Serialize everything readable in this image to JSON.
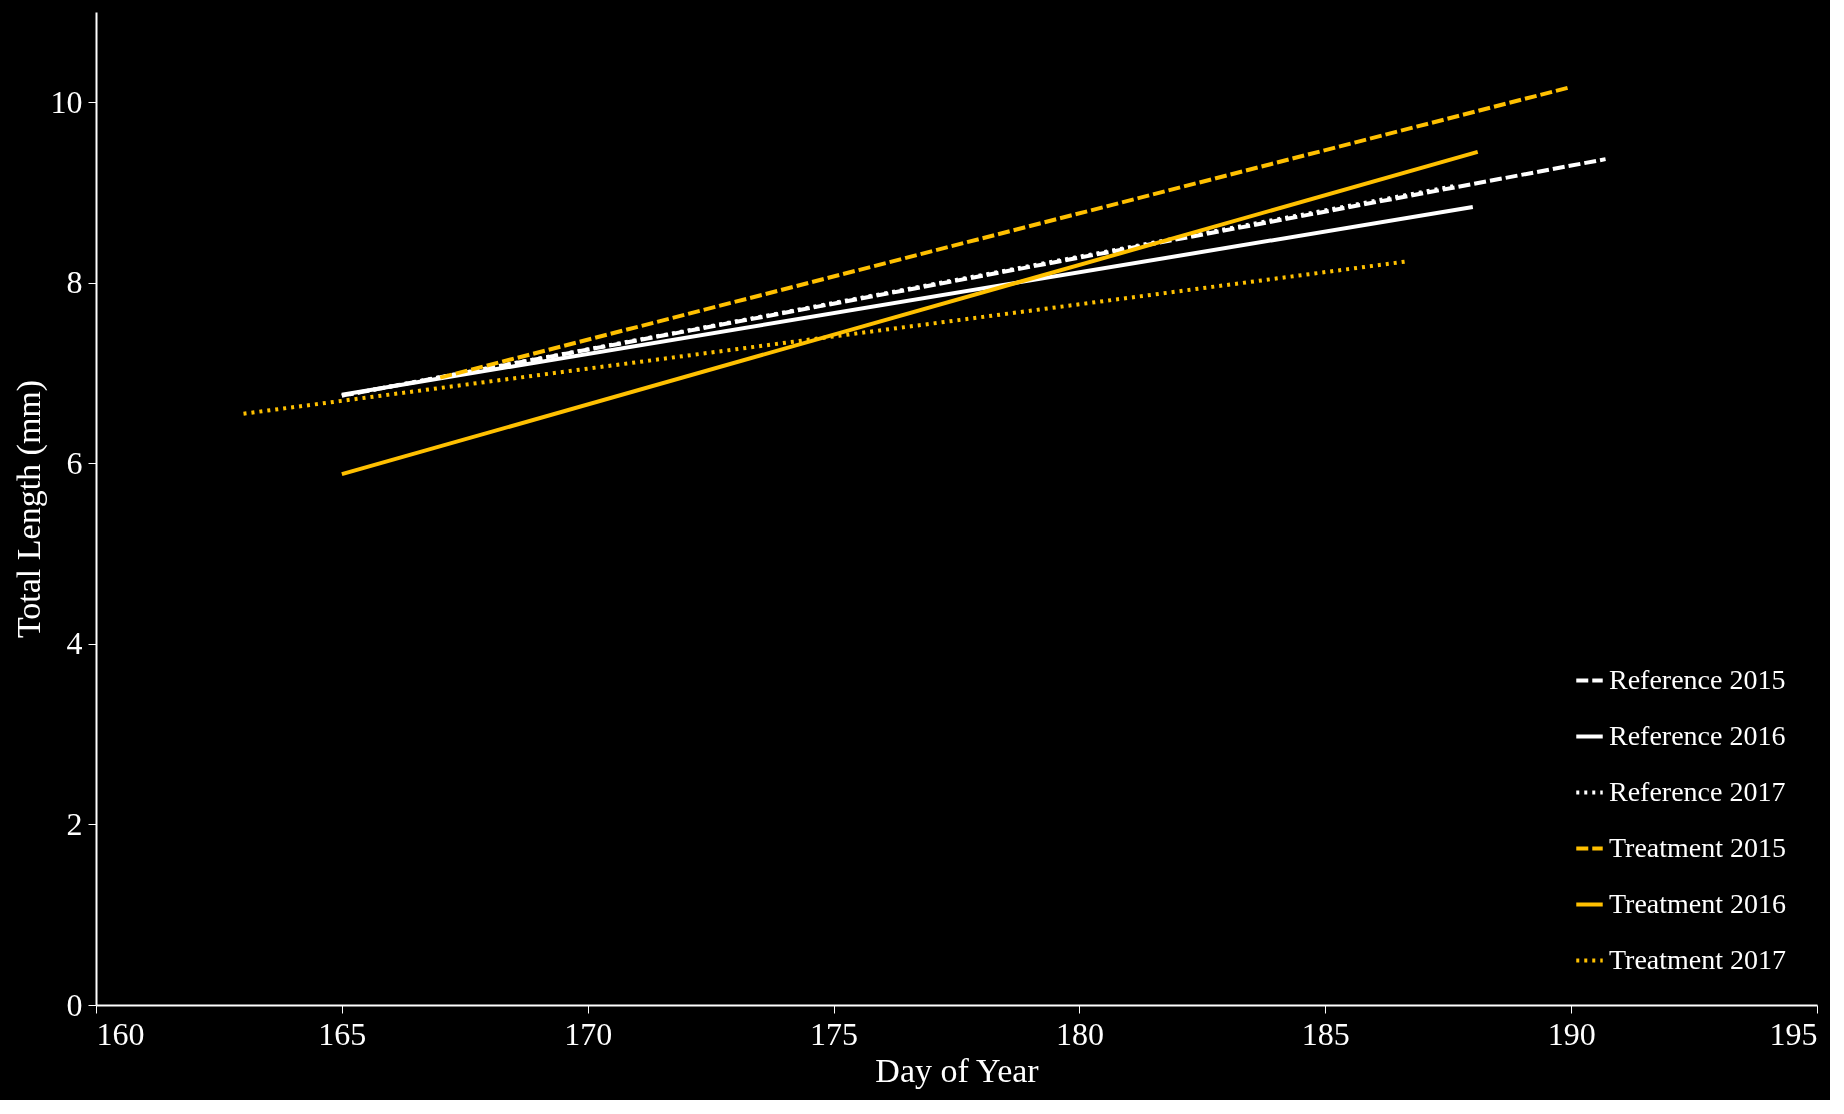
{
  "chart_data": {
    "type": "line",
    "xlabel": "Day of Year",
    "ylabel": "Total Length (mm)",
    "xlim": [
      160,
      195
    ],
    "xticks": [
      160,
      165,
      170,
      175,
      180,
      185,
      190,
      195
    ],
    "ylim": [
      0,
      11
    ],
    "yticks": [
      0,
      2,
      4,
      6,
      8,
      10
    ],
    "grid": false,
    "legend": "bottom right",
    "marker": "none",
    "series": [
      {
        "name": "Reference 2015",
        "color": "#ffffff",
        "line_style": "dashed",
        "x": [
          165,
          190.7
        ],
        "values": [
          6.75,
          9.37
        ]
      },
      {
        "name": "Reference 2016",
        "color": "#ffffff",
        "line_style": "solid",
        "x": [
          165,
          188
        ],
        "values": [
          6.76,
          8.84
        ]
      },
      {
        "name": "Reference 2017",
        "color": "#ffffff",
        "line_style": "dotted",
        "x": [
          165,
          187.6
        ],
        "values": [
          6.75,
          9.07
        ]
      },
      {
        "name": "Treatment 2015",
        "color": "#ffc000",
        "line_style": "dashed",
        "x": [
          167,
          190
        ],
        "values": [
          6.95,
          10.17
        ]
      },
      {
        "name": "Treatment 2016",
        "color": "#ffc000",
        "line_style": "solid",
        "x": [
          165,
          188.1
        ],
        "values": [
          5.88,
          9.45
        ]
      },
      {
        "name": "Treatment 2017",
        "color": "#ffc000",
        "line_style": "dotted",
        "x": [
          163,
          186.7
        ],
        "values": [
          6.55,
          8.24
        ]
      }
    ]
  }
}
